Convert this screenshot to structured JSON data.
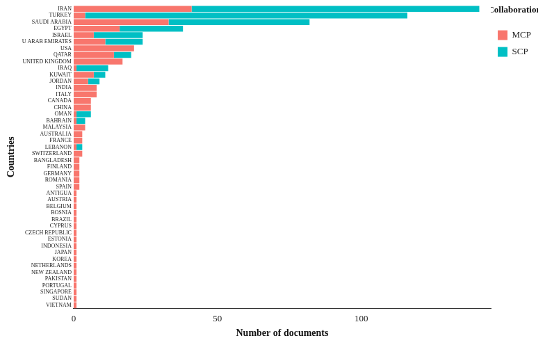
{
  "chart_data": {
    "type": "bar",
    "orientation": "horizontal",
    "stacked": true,
    "grid": false,
    "legend": "top right",
    "legend_title": "Collaboration",
    "x_label": "Number of documents",
    "y_label": "Countries",
    "xlim": [
      0,
      145
    ],
    "xticks": [
      0,
      50,
      100
    ],
    "categories": [
      "IRAN",
      "TURKEY",
      "SAUDI ARABIA",
      "EGYPT",
      "ISRAEL",
      "U ARAB EMIRATES",
      "USA",
      "QATAR",
      "UNITED KINGDOM",
      "IRAQ",
      "KUWAIT",
      "JORDAN",
      "INDIA",
      "ITALY",
      "CANADA",
      "CHINA",
      "OMAN",
      "BAHRAIN",
      "MALAYSIA",
      "AUSTRALIA",
      "FRANCE",
      "LEBANON",
      "SWITZERLAND",
      "BANGLADESH",
      "FINLAND",
      "GERMANY",
      "ROMANIA",
      "SPAIN",
      "ANTIGUA",
      "AUSTRIA",
      "BELGIUM",
      "BOSNIA",
      "BRAZIL",
      "CYPRUS",
      "CZECH REPUBLIC",
      "ESTONIA",
      "INDONESIA",
      "JAPAN",
      "KOREA",
      "NETHERLANDS",
      "NEW ZEALAND",
      "PAKISTAN",
      "PORTUGAL",
      "SINGAPORE",
      "SUDAN",
      "VIETNAM"
    ],
    "series": [
      {
        "name": "MCP",
        "color": "#F8766D",
        "values": [
          41,
          4,
          33,
          16,
          7,
          11,
          21,
          14,
          17,
          1,
          7,
          5,
          8,
          8,
          6,
          6,
          1,
          1,
          4,
          3,
          3,
          1,
          3,
          2,
          2,
          2,
          2,
          2,
          1,
          1,
          1,
          1,
          1,
          1,
          1,
          1,
          1,
          1,
          1,
          1,
          1,
          1,
          1,
          1,
          1,
          1
        ]
      },
      {
        "name": "SCP",
        "color": "#00BFC4",
        "values": [
          100,
          112,
          49,
          22,
          17,
          13,
          0,
          6,
          0,
          11,
          4,
          4,
          0,
          0,
          0,
          0,
          5,
          3,
          0,
          0,
          0,
          2,
          0,
          0,
          0,
          0,
          0,
          0,
          0,
          0,
          0,
          0,
          0,
          0,
          0,
          0,
          0,
          0,
          0,
          0,
          0,
          0,
          0,
          0,
          0,
          0
        ]
      }
    ]
  }
}
